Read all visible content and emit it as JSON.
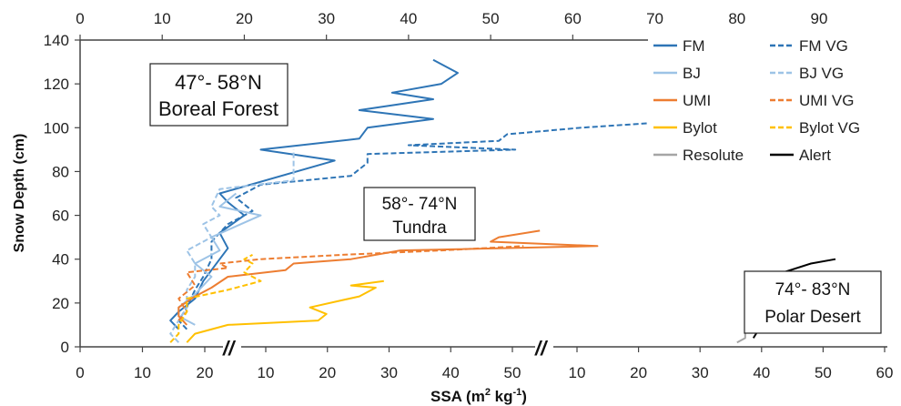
{
  "chart_data": {
    "type": "line",
    "ylabel": "Snow Depth (cm)",
    "xlabel_main": "SSA (m",
    "xlabel_sup1": "2",
    "xlabel_mid": " kg",
    "xlabel_sup2": "-1",
    "xlabel_end": ")",
    "ylim": [
      0,
      140
    ],
    "y_ticks": [
      "0",
      "20",
      "40",
      "60",
      "80",
      "100",
      "120",
      "140"
    ],
    "top_axis": {
      "range": [
        0,
        90
      ],
      "ticks": [
        "0",
        "10",
        "20",
        "30",
        "40",
        "50",
        "60",
        "70",
        "80",
        "90"
      ]
    },
    "bottom_panels": [
      {
        "ticks": [
          "0",
          "10",
          "20"
        ]
      },
      {
        "ticks": [
          "10",
          "20",
          "30",
          "40",
          "50"
        ]
      },
      {
        "ticks": [
          "10",
          "20",
          "30",
          "40",
          "50",
          "60"
        ]
      }
    ],
    "break_symbol": "//",
    "region_labels": [
      {
        "line1": "47°- 58°N",
        "line2": "Boreal Forest"
      },
      {
        "line1": "58°- 74°N",
        "line2": "Tundra"
      },
      {
        "line1": "74°- 83°N",
        "line2": "Polar Desert"
      }
    ],
    "legend": [
      {
        "label": "FM",
        "color": "#2E75B6",
        "dash": false
      },
      {
        "label": "FM VG",
        "color": "#2E75B6",
        "dash": true
      },
      {
        "label": "BJ",
        "color": "#9DC3E6",
        "dash": false
      },
      {
        "label": "BJ VG",
        "color": "#9DC3E6",
        "dash": true
      },
      {
        "label": "UMI",
        "color": "#ED7D31",
        "dash": false
      },
      {
        "label": "UMI VG",
        "color": "#ED7D31",
        "dash": true
      },
      {
        "label": "Bylot",
        "color": "#FFC000",
        "dash": false
      },
      {
        "label": "Bylot VG",
        "color": "#FFC000",
        "dash": true
      },
      {
        "label": "Resolute",
        "color": "#A5A5A5",
        "dash": false
      },
      {
        "label": "Alert",
        "color": "#000000",
        "dash": false
      }
    ],
    "series": [
      {
        "name": "FM",
        "color": "#2E75B6",
        "dash": false,
        "points": [
          [
            12,
            8
          ],
          [
            11,
            12
          ],
          [
            12,
            16
          ],
          [
            14,
            22
          ],
          [
            15,
            30
          ],
          [
            17,
            40
          ],
          [
            18,
            45
          ],
          [
            17,
            52
          ],
          [
            20,
            60
          ],
          [
            18,
            66
          ],
          [
            17,
            70
          ],
          [
            31,
            85
          ],
          [
            22,
            90
          ],
          [
            34,
            95
          ],
          [
            35,
            100
          ],
          [
            43,
            104
          ],
          [
            34,
            108
          ],
          [
            43,
            113
          ],
          [
            38,
            116
          ],
          [
            44,
            120
          ],
          [
            46,
            125
          ],
          [
            43,
            131
          ]
        ]
      },
      {
        "name": "FM VG",
        "color": "#2E75B6",
        "dash": true,
        "points": [
          [
            13,
            8
          ],
          [
            12,
            12
          ],
          [
            13,
            18
          ],
          [
            14,
            26
          ],
          [
            15,
            32
          ],
          [
            16,
            40
          ],
          [
            16,
            48
          ],
          [
            18,
            56
          ],
          [
            21,
            62
          ],
          [
            19,
            68
          ],
          [
            22,
            74
          ],
          [
            33,
            78
          ],
          [
            35,
            84
          ],
          [
            35,
            88
          ],
          [
            53,
            90
          ],
          [
            40,
            92
          ],
          [
            51,
            94
          ],
          [
            52,
            97
          ],
          [
            61,
            100
          ],
          [
            77,
            104
          ],
          [
            87,
            108
          ],
          [
            88,
            110
          ],
          [
            76,
            113
          ]
        ]
      },
      {
        "name": "BJ",
        "color": "#9DC3E6",
        "dash": false,
        "points": [
          [
            14,
            10
          ],
          [
            12,
            14
          ],
          [
            12,
            18
          ],
          [
            14,
            24
          ],
          [
            16,
            32
          ],
          [
            14,
            38
          ],
          [
            17,
            44
          ],
          [
            16,
            50
          ],
          [
            19,
            55
          ],
          [
            22,
            60
          ],
          [
            17,
            64
          ],
          [
            19,
            70
          ]
        ]
      },
      {
        "name": "BJ VG",
        "color": "#9DC3E6",
        "dash": true,
        "points": [
          [
            12,
            2
          ],
          [
            11,
            6
          ],
          [
            12,
            12
          ],
          [
            13,
            18
          ],
          [
            13,
            26
          ],
          [
            14,
            32
          ],
          [
            14,
            38
          ],
          [
            13,
            44
          ],
          [
            16,
            50
          ],
          [
            15,
            56
          ],
          [
            17,
            60
          ],
          [
            16,
            64
          ],
          [
            17,
            72
          ],
          [
            26,
            76
          ],
          [
            26,
            90
          ]
        ]
      },
      {
        "name": "UMI",
        "color": "#ED7D31",
        "dash": false,
        "points": [
          [
            13,
            10
          ],
          [
            12,
            14
          ],
          [
            12,
            18
          ],
          [
            14,
            23
          ],
          [
            16,
            27
          ],
          [
            18,
            32
          ],
          [
            25,
            35
          ],
          [
            26,
            38
          ],
          [
            33,
            40
          ],
          [
            39,
            44
          ],
          [
            63,
            46
          ],
          [
            50,
            48
          ],
          [
            51,
            50
          ],
          [
            56,
            53
          ]
        ]
      },
      {
        "name": "UMI VG",
        "color": "#ED7D31",
        "dash": true,
        "points": [
          [
            12,
            12
          ],
          [
            13,
            16
          ],
          [
            12,
            22
          ],
          [
            14,
            28
          ],
          [
            13,
            34
          ],
          [
            18,
            36
          ],
          [
            17,
            38
          ],
          [
            22,
            40
          ],
          [
            32,
            42
          ],
          [
            44,
            44
          ],
          [
            54,
            46
          ]
        ]
      },
      {
        "name": "Bylot",
        "color": "#FFC000",
        "dash": false,
        "points": [
          [
            13,
            2
          ],
          [
            14,
            6
          ],
          [
            18,
            10
          ],
          [
            29,
            12
          ],
          [
            30,
            15
          ],
          [
            28,
            18
          ],
          [
            34,
            23
          ],
          [
            36,
            27
          ],
          [
            33,
            28
          ],
          [
            37,
            30
          ]
        ]
      },
      {
        "name": "Bylot VG",
        "color": "#FFC000",
        "dash": true,
        "points": [
          [
            11,
            2
          ],
          [
            12,
            6
          ],
          [
            12,
            10
          ],
          [
            13,
            16
          ],
          [
            13,
            22
          ],
          [
            18,
            26
          ],
          [
            22,
            30
          ],
          [
            20,
            34
          ],
          [
            21,
            38
          ],
          [
            20,
            40
          ],
          [
            21,
            42
          ]
        ]
      },
      {
        "name": "Resolute",
        "color": "#A5A5A5",
        "dash": false,
        "points": [
          [
            80,
            2
          ],
          [
            81,
            4
          ],
          [
            81,
            8
          ],
          [
            82,
            12
          ],
          [
            81,
            16
          ],
          [
            82,
            20
          ],
          [
            81,
            22
          ],
          [
            86,
            24
          ],
          [
            83,
            26
          ],
          [
            86,
            28
          ],
          [
            84,
            30
          ]
        ]
      },
      {
        "name": "Alert",
        "color": "#000000",
        "dash": false,
        "points": [
          [
            82,
            4
          ],
          [
            83,
            10
          ],
          [
            84,
            16
          ],
          [
            86,
            18
          ],
          [
            91,
            24
          ],
          [
            87,
            26
          ],
          [
            84,
            32
          ],
          [
            89,
            38
          ],
          [
            92,
            40
          ]
        ]
      }
    ]
  }
}
